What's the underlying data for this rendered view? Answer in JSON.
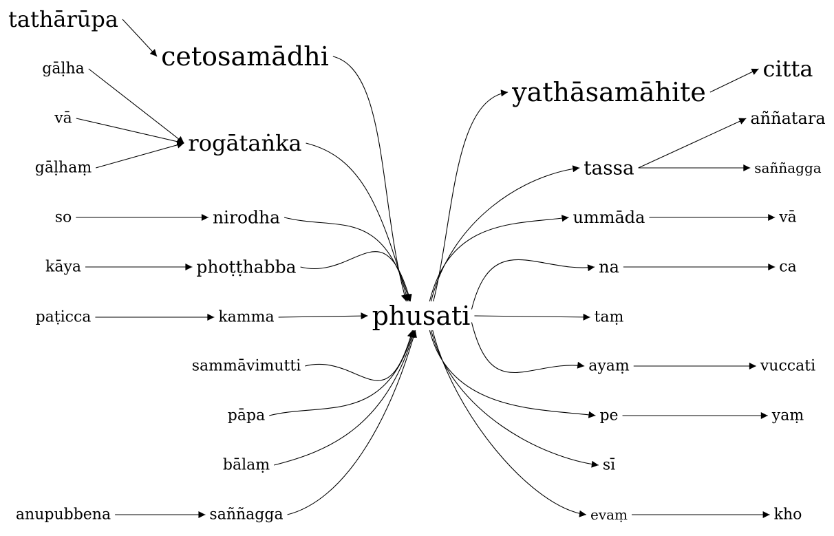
{
  "nodes": {
    "tatharupa": "tathārūpa",
    "cetosamadhi": "cetosamādhi",
    "galha": "gāḷha",
    "va_left": "vā",
    "galham": "gāḷhaṃ",
    "rogatanka": "rogātaṅka",
    "so": "so",
    "nirodha": "nirodha",
    "kaya": "kāya",
    "photthabba": "phoṭṭhabba",
    "paticca": "paṭicca",
    "kamma": "kamma",
    "sammavimutti": "sammāvimutti",
    "papa": "pāpa",
    "balam": "bālaṃ",
    "anupubbena": "anupubbena",
    "sannagga_left": "saññagga",
    "phusati": "phusati",
    "yathasamahite": "yathāsamāhite",
    "citta": "citta",
    "annatara": "aññatara",
    "tassa": "tassa",
    "sannagga_right": "saññagga",
    "ummada": "ummāda",
    "va_right": "vā",
    "na": "na",
    "ca": "ca",
    "tam": "taṃ",
    "ayam": "ayaṃ",
    "vuccati": "vuccati",
    "pe": "pe",
    "yam": "yaṃ",
    "si": "sī",
    "evam": "evaṃ",
    "kho": "kho"
  },
  "edges": [
    [
      "tatharupa",
      "cetosamadhi"
    ],
    [
      "cetosamadhi",
      "phusati"
    ],
    [
      "galha",
      "rogatanka"
    ],
    [
      "va_left",
      "rogatanka"
    ],
    [
      "galham",
      "rogatanka"
    ],
    [
      "rogatanka",
      "phusati"
    ],
    [
      "so",
      "nirodha"
    ],
    [
      "nirodha",
      "phusati"
    ],
    [
      "kaya",
      "photthabba"
    ],
    [
      "photthabba",
      "phusati"
    ],
    [
      "paticca",
      "kamma"
    ],
    [
      "kamma",
      "phusati"
    ],
    [
      "sammavimutti",
      "phusati"
    ],
    [
      "papa",
      "phusati"
    ],
    [
      "balam",
      "phusati"
    ],
    [
      "anupubbena",
      "sannagga_left"
    ],
    [
      "sannagga_left",
      "phusati"
    ],
    [
      "phusati",
      "yathasamahite"
    ],
    [
      "yathasamahite",
      "citta"
    ],
    [
      "phusati",
      "tassa"
    ],
    [
      "tassa",
      "annatara"
    ],
    [
      "tassa",
      "sannagga_right"
    ],
    [
      "phusati",
      "ummada"
    ],
    [
      "ummada",
      "va_right"
    ],
    [
      "phusati",
      "na"
    ],
    [
      "na",
      "ca"
    ],
    [
      "phusati",
      "tam"
    ],
    [
      "phusati",
      "ayam"
    ],
    [
      "ayam",
      "vuccati"
    ],
    [
      "phusati",
      "pe"
    ],
    [
      "pe",
      "yam"
    ],
    [
      "phusati",
      "si"
    ],
    [
      "phusati",
      "evam"
    ],
    [
      "evam",
      "kho"
    ]
  ]
}
